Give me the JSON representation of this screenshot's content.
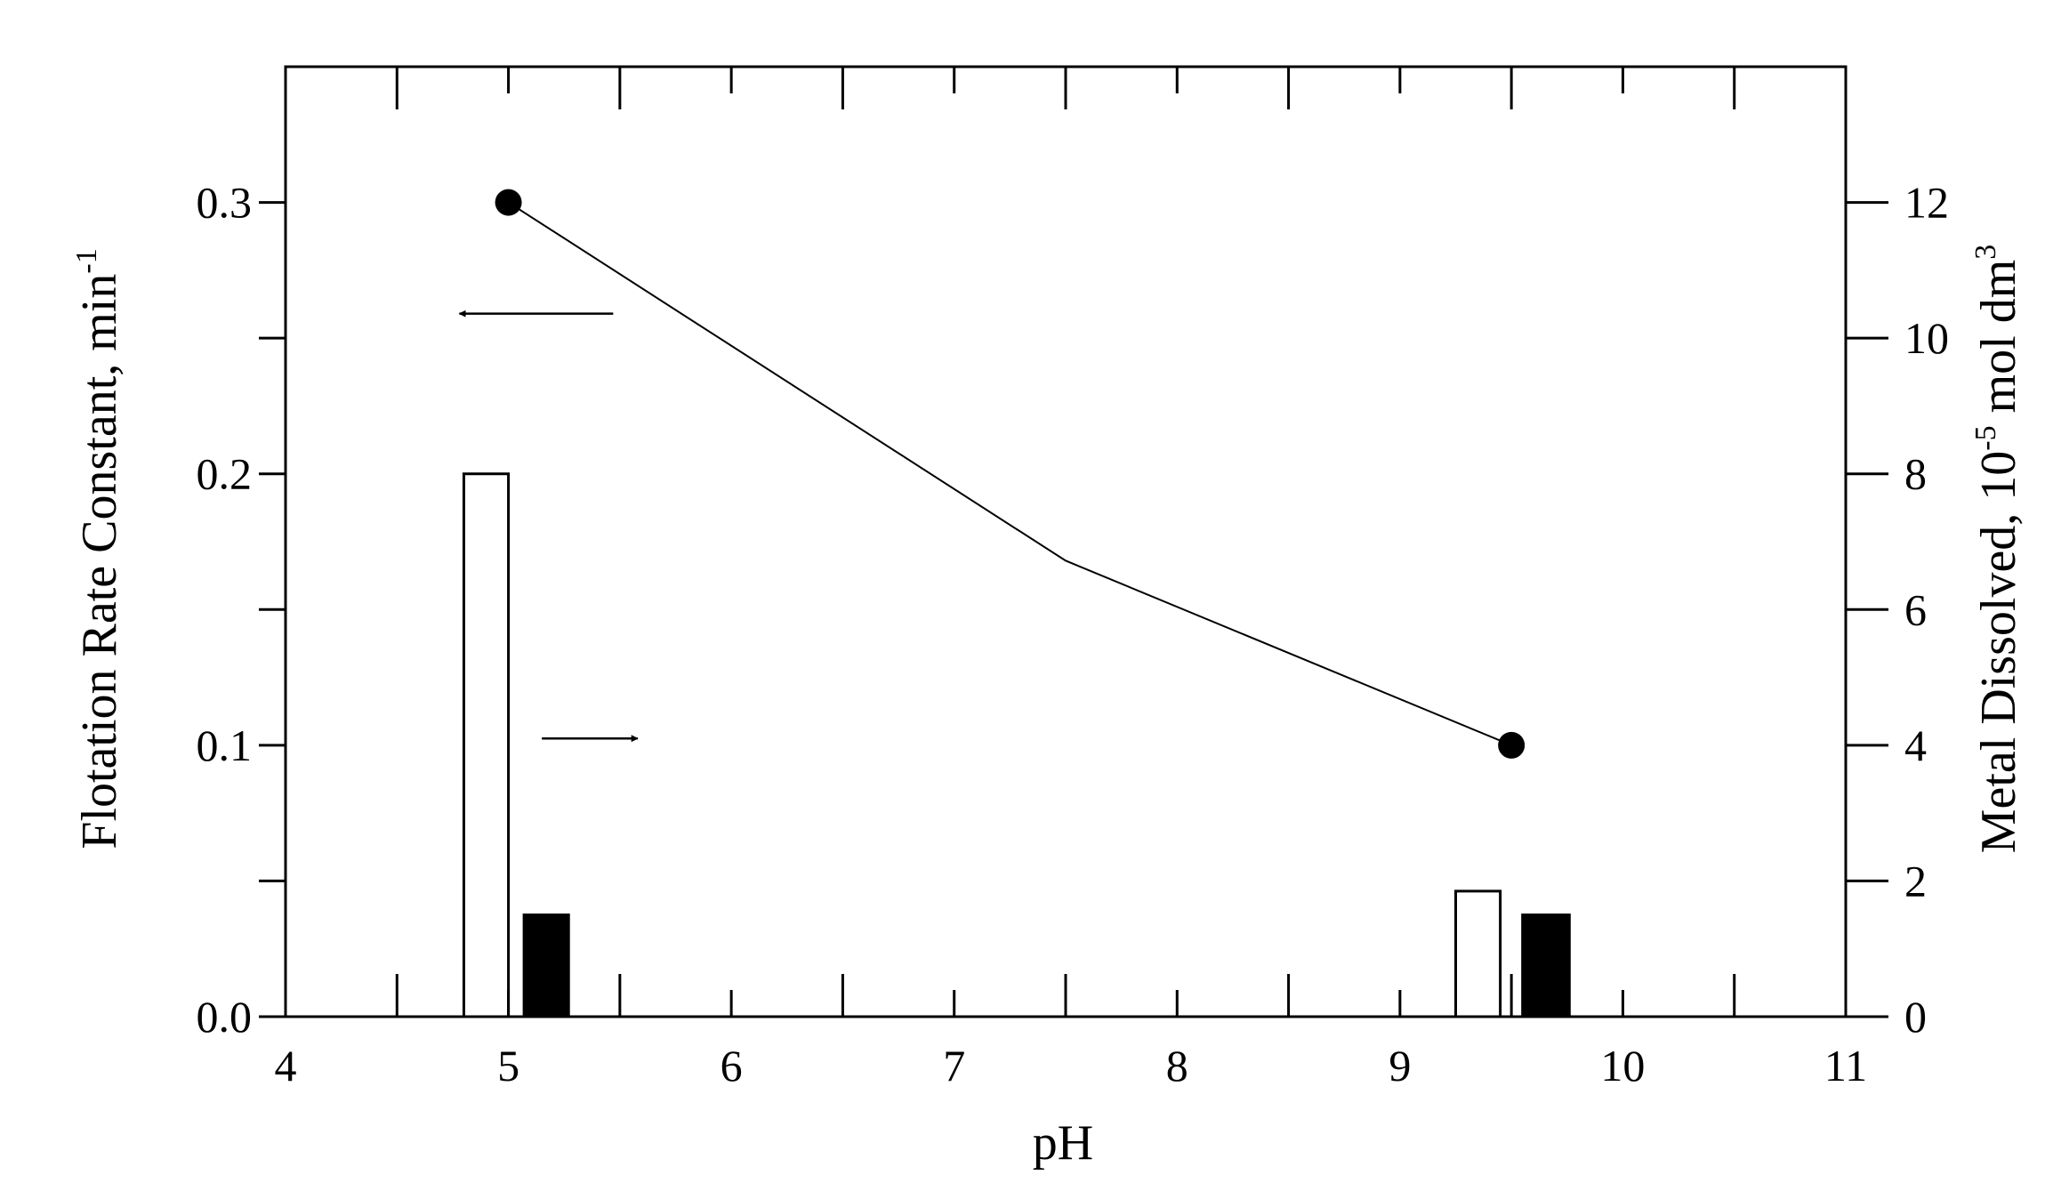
{
  "chart_data": {
    "type": "bar",
    "xlabel": "pH",
    "ylabel_left": {
      "text": "Flotation Rate Constant,  min",
      "superscript": "-1"
    },
    "ylabel_right": {
      "text_before": "Metal Dissolved,  10",
      "superscript": "-5",
      "text_after": " mol dm",
      "superscript2": "3"
    },
    "xlim": [
      4,
      11
    ],
    "ylim_left": [
      0,
      0.35
    ],
    "ylim_right": [
      0,
      14
    ],
    "x_ticks": [
      4,
      5,
      6,
      7,
      8,
      9,
      10,
      11
    ],
    "x_tick_labels": [
      "4",
      "5",
      "6",
      "7",
      "8",
      "9",
      "10",
      "11"
    ],
    "left_ticks": [
      0,
      0.1,
      0.2,
      0.3
    ],
    "left_tick_labels": [
      "0.0",
      "0.1",
      "0.2",
      "0.3"
    ],
    "left_minor_ticks": [
      0.05,
      0.15,
      0.25
    ],
    "right_ticks": [
      0,
      2,
      4,
      6,
      8,
      10,
      12
    ],
    "right_tick_labels": [
      "0",
      "2",
      "4",
      "6",
      "8",
      "10",
      "12"
    ],
    "line_series": {
      "axis": "left",
      "x": [
        5.0,
        7.5,
        9.5
      ],
      "y": [
        0.3,
        0.168,
        0.1
      ],
      "markers": [
        true,
        false,
        true
      ],
      "color": "#000000"
    },
    "bar_series": [
      {
        "axis": "right",
        "fill": "#ffffff",
        "stroke": "#000000",
        "bars": [
          {
            "x_start": 4.8,
            "x_end": 5.0,
            "value": 8.0
          },
          {
            "x_start": 9.25,
            "x_end": 9.45,
            "value": 1.85
          }
        ]
      },
      {
        "axis": "right",
        "fill": "#000000",
        "stroke": "#000000",
        "bars": [
          {
            "x_start": 5.07,
            "x_end": 5.27,
            "value": 1.5
          },
          {
            "x_start": 9.55,
            "x_end": 9.76,
            "value": 1.5
          }
        ]
      }
    ],
    "annotations": [
      {
        "type": "arrow",
        "direction": "left",
        "points_to": "left-axis",
        "x_from": 5.47,
        "x_to": 4.78,
        "y_left": 0.259
      },
      {
        "type": "arrow",
        "direction": "right",
        "points_to": "right-axis",
        "x_from": 5.15,
        "x_to": 5.58,
        "y_left": 0.1025
      }
    ],
    "grid": false,
    "legend": "none"
  }
}
